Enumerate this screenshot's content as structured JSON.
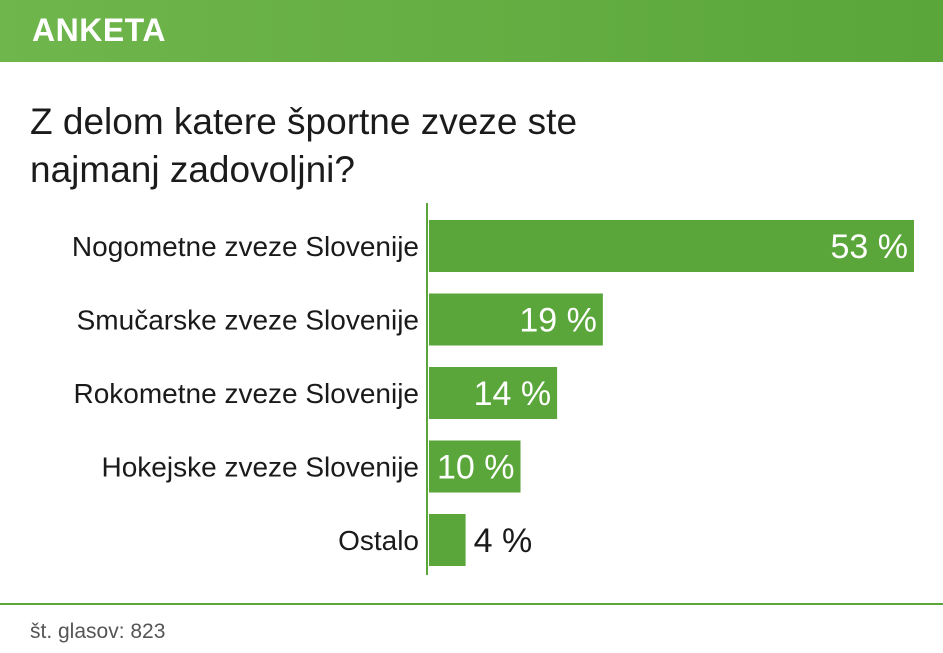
{
  "header": {
    "label": "ANKETA"
  },
  "question": "Z delom katere športne zveze ste najmanj zadovoljni?",
  "footer": {
    "votes": "št. glasov: 823"
  },
  "colors": {
    "accent": "#5aa63a",
    "bar": "#5aa63a",
    "text": "#1a1a1a"
  },
  "chart_data": {
    "type": "bar",
    "orientation": "horizontal",
    "title": "Z delom katere športne zveze ste najmanj zadovoljni?",
    "categories": [
      "Nogometne zveze Slovenije",
      "Smučarske zveze Slovenije",
      "Rokometne zveze Slovenije",
      "Hokejske zveze Slovenije",
      "Ostalo"
    ],
    "values": [
      53,
      19,
      14,
      10,
      4
    ],
    "value_labels": [
      "53 %",
      "19 %",
      "14 %",
      "10 %",
      "4 %"
    ],
    "unit": "%",
    "xlim": [
      0,
      53
    ],
    "grid": false,
    "legend": "none"
  }
}
